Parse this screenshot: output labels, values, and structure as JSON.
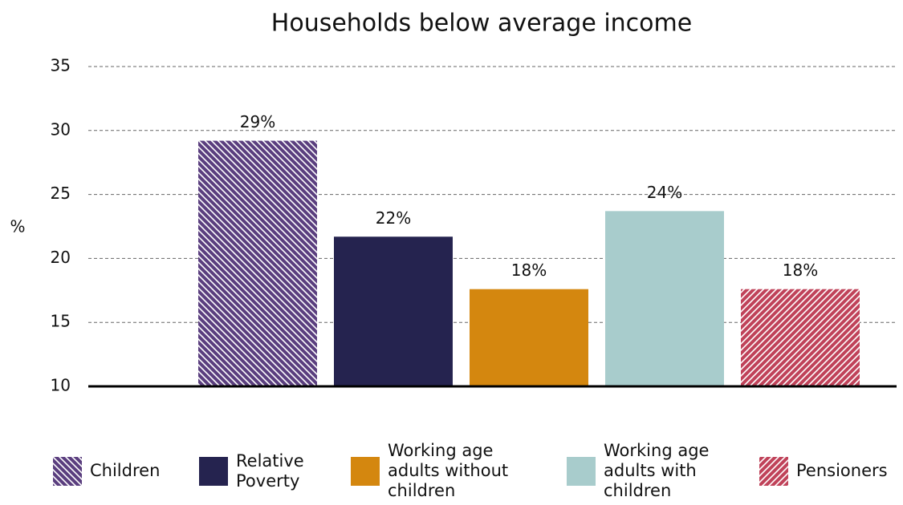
{
  "chart_data": {
    "type": "bar",
    "title": "Households below average income",
    "y_label": "%",
    "categories": [
      null
    ],
    "series": [
      {
        "name": "Children",
        "color": "#5b3f7f",
        "pattern": "backslash-hatch",
        "values": [
          29.2
        ],
        "value_labels": [
          "29%"
        ]
      },
      {
        "name": "Relative Poverty",
        "color": "#25234f",
        "values": [
          21.7
        ],
        "value_labels": [
          "22%"
        ]
      },
      {
        "name": "Working age adults without children",
        "color": "#d4870f",
        "values": [
          17.6
        ],
        "value_labels": [
          "18%"
        ]
      },
      {
        "name": "Working age adults with children",
        "color": "#a8cccc",
        "values": [
          23.7
        ],
        "value_labels": [
          "24%"
        ]
      },
      {
        "name": "Pensioners",
        "color": "#c0435a",
        "pattern": "slash-hatch",
        "values": [
          17.6
        ],
        "value_labels": [
          "18%"
        ]
      }
    ],
    "ylim": [
      10,
      35
    ],
    "yticks": [
      10,
      15,
      20,
      25,
      30,
      35
    ],
    "grid": true,
    "legend": "bottom"
  }
}
